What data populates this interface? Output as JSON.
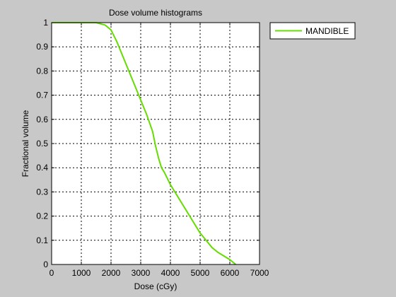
{
  "chart_data": {
    "type": "line",
    "title": "Dose volume histograms",
    "xlabel": "Dose (cGy)",
    "ylabel": "Fractional volume",
    "xlim": [
      0,
      7000
    ],
    "ylim": [
      0,
      1
    ],
    "xticks": [
      0,
      1000,
      2000,
      3000,
      4000,
      5000,
      6000,
      7000
    ],
    "yticks": [
      0,
      0.1,
      0.2,
      0.3,
      0.4,
      0.5,
      0.6,
      0.7,
      0.8,
      0.9,
      1
    ],
    "xtick_labels": [
      "0",
      "1000",
      "2000",
      "3000",
      "4000",
      "5000",
      "6000",
      "7000"
    ],
    "ytick_labels": [
      "0",
      "0.1",
      "0.2",
      "0.3",
      "0.4",
      "0.5",
      "0.6",
      "0.7",
      "0.8",
      "0.9",
      "1"
    ],
    "grid": true,
    "legend_position": "outside-top-right",
    "series": [
      {
        "name": "MANDIBLE",
        "color": "#66dd00",
        "x": [
          0,
          1500,
          1800,
          2000,
          2200,
          2400,
          2600,
          2800,
          3000,
          3200,
          3400,
          3500,
          3600,
          3700,
          3800,
          4000,
          4200,
          4400,
          4600,
          4800,
          5000,
          5200,
          5400,
          5600,
          5800,
          6000,
          6100,
          6200
        ],
        "y": [
          1.0,
          1.0,
          0.99,
          0.97,
          0.92,
          0.86,
          0.8,
          0.74,
          0.68,
          0.62,
          0.55,
          0.49,
          0.44,
          0.4,
          0.38,
          0.33,
          0.29,
          0.25,
          0.21,
          0.17,
          0.13,
          0.1,
          0.07,
          0.05,
          0.035,
          0.02,
          0.01,
          0.0
        ]
      }
    ]
  }
}
